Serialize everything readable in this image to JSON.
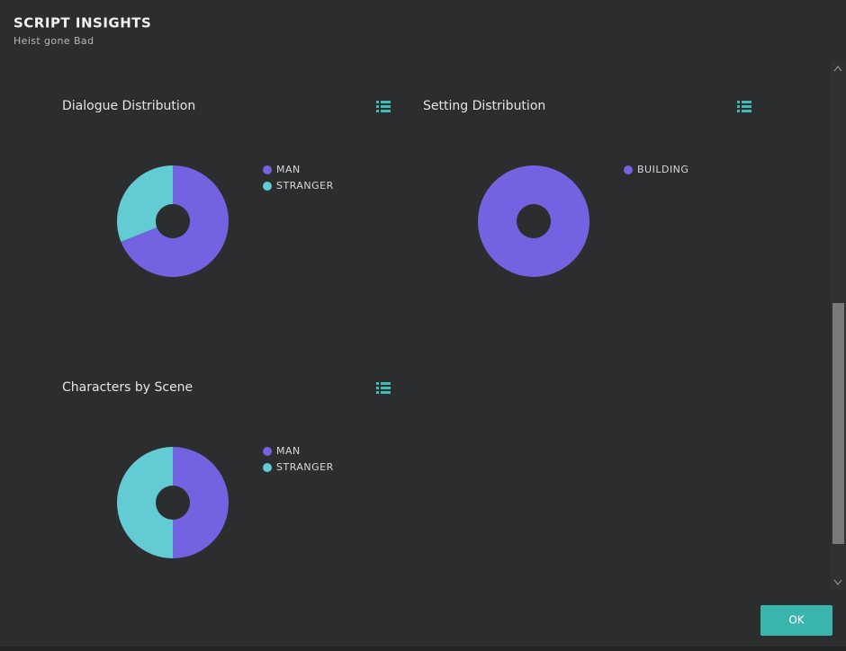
{
  "header": {
    "title": "SCRIPT INSIGHTS",
    "subtitle": "Heist gone Bad"
  },
  "chart_data": [
    {
      "type": "pie",
      "title": "Dialogue Distribution",
      "categories": [
        "MAN",
        "STRANGER"
      ],
      "values": [
        69,
        31
      ],
      "colors": [
        "#7363e1",
        "#63cbd4"
      ]
    },
    {
      "type": "pie",
      "title": "Setting Distribution",
      "categories": [
        "BUILDING"
      ],
      "values": [
        100
      ],
      "colors": [
        "#7363e1"
      ]
    },
    {
      "type": "pie",
      "title": "Characters by Scene",
      "categories": [
        "MAN",
        "STRANGER"
      ],
      "values": [
        50,
        50
      ],
      "colors": [
        "#7363e1",
        "#63cbd4"
      ]
    }
  ],
  "button": {
    "label": "OK"
  }
}
